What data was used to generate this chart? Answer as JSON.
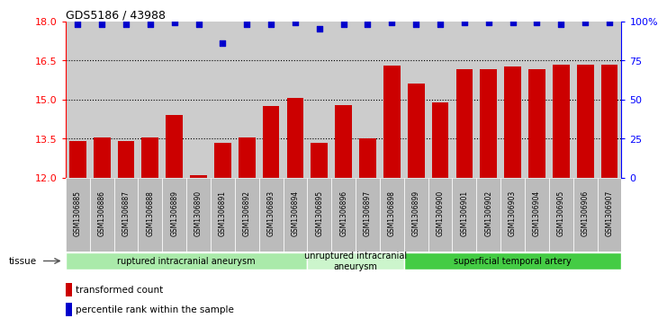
{
  "title": "GDS5186 / 43988",
  "samples": [
    "GSM1306885",
    "GSM1306886",
    "GSM1306887",
    "GSM1306888",
    "GSM1306889",
    "GSM1306890",
    "GSM1306891",
    "GSM1306892",
    "GSM1306893",
    "GSM1306894",
    "GSM1306895",
    "GSM1306896",
    "GSM1306897",
    "GSM1306898",
    "GSM1306899",
    "GSM1306900",
    "GSM1306901",
    "GSM1306902",
    "GSM1306903",
    "GSM1306904",
    "GSM1306905",
    "GSM1306906",
    "GSM1306907"
  ],
  "bar_values": [
    13.4,
    13.55,
    13.4,
    13.55,
    14.4,
    12.1,
    13.35,
    13.55,
    14.75,
    15.05,
    13.35,
    14.8,
    13.5,
    16.3,
    15.6,
    14.9,
    16.15,
    16.15,
    16.25,
    16.15,
    16.35,
    16.35,
    16.35
  ],
  "percentile_values": [
    98,
    98,
    98,
    98,
    99,
    98,
    86,
    98,
    98,
    99,
    95,
    98,
    98,
    99,
    98,
    98,
    99,
    99,
    99,
    99,
    98,
    99,
    99
  ],
  "bar_color": "#cc0000",
  "dot_color": "#0000cc",
  "ylim_left": [
    12,
    18
  ],
  "ylim_right": [
    0,
    100
  ],
  "yticks_left": [
    12,
    13.5,
    15,
    16.5,
    18
  ],
  "yticks_right": [
    0,
    25,
    50,
    75,
    100
  ],
  "ytick_labels_right": [
    "0",
    "25",
    "50",
    "75",
    "100%"
  ],
  "hlines": [
    13.5,
    15.0,
    16.5
  ],
  "groups": [
    {
      "label": "ruptured intracranial aneurysm",
      "start": 0,
      "end": 10,
      "color": "#aaeaaa"
    },
    {
      "label": "unruptured intracranial\naneurysm",
      "start": 10,
      "end": 14,
      "color": "#ccf5cc"
    },
    {
      "label": "superficial temporal artery",
      "start": 14,
      "end": 23,
      "color": "#44cc44"
    }
  ],
  "tissue_label": "tissue",
  "legend_bar_label": "transformed count",
  "legend_dot_label": "percentile rank within the sample",
  "plot_bg_color": "#cccccc",
  "label_bg_color": "#bbbbbb"
}
